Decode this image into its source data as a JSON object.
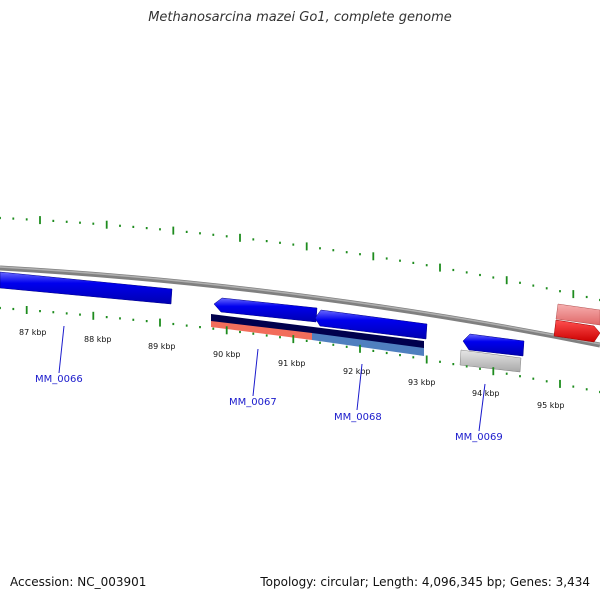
{
  "title": "Methanosarcina mazei Go1, complete genome",
  "footer": {
    "accession": "Accession: NC_003901",
    "summary": "Topology: circular; Length: 4,096,345 bp; Genes: 3,434"
  },
  "ruler_labels": [
    "87 kbp",
    "88 kbp",
    "89 kbp",
    "90 kbp",
    "91 kbp",
    "92 kbp",
    "93 kbp",
    "94 kbp",
    "95 kbp"
  ],
  "gene_labels": [
    "MM_0066",
    "MM_0067",
    "MM_0068",
    "MM_0069"
  ],
  "colors": {
    "backbone": "#7f7f7f",
    "forward_gene": "#0000ee",
    "tick": "#1e8c1e",
    "label": "#1a1acc",
    "navy_track": "#00004d",
    "salmon_track": "#f26d5b",
    "steel_track": "#4f7fbf",
    "gray_gene": "#c8c8c8",
    "pink_gene": "#f08080",
    "red_gene": "#ee0000"
  }
}
